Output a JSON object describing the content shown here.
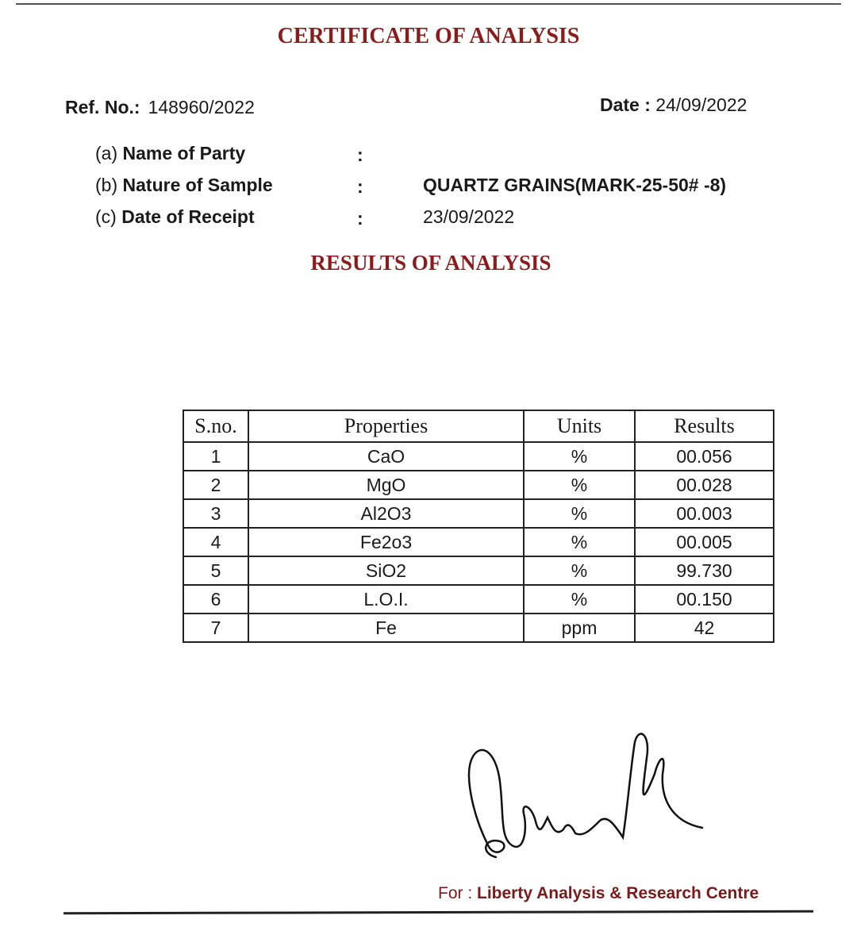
{
  "title": "CERTIFICATE OF ANALYSIS",
  "ref": {
    "label": "Ref. No.:",
    "value": "148960/2022"
  },
  "date": {
    "label": "Date :",
    "value": "24/09/2022"
  },
  "fields": [
    {
      "prefix": "(a)",
      "label": "Name of Party",
      "colon": ":",
      "value": ""
    },
    {
      "prefix": "(b)",
      "label": "Nature of Sample",
      "colon": ":",
      "value": "QUARTZ GRAINS(MARK-25-50# -8)"
    },
    {
      "prefix": "(c)",
      "label": "Date of Receipt",
      "colon": ":",
      "value": "23/09/2022"
    }
  ],
  "results_title": "RESULTS OF ANALYSIS",
  "table": {
    "headers": [
      "S.no.",
      "Properties",
      "Units",
      "Results"
    ],
    "rows": [
      [
        "1",
        "CaO",
        "%",
        "00.056"
      ],
      [
        "2",
        "MgO",
        "%",
        "00.028"
      ],
      [
        "3",
        "Al2O3",
        "%",
        "00.003"
      ],
      [
        "4",
        "Fe2o3",
        "%",
        "00.005"
      ],
      [
        "5",
        "SiO2",
        "%",
        "99.730"
      ],
      [
        "6",
        "L.O.I.",
        "%",
        "00.150"
      ],
      [
        "7",
        "Fe",
        "ppm",
        "42"
      ]
    ]
  },
  "footer": {
    "prefix": "For :",
    "org": "Liberty Analysis & Research Centre"
  }
}
